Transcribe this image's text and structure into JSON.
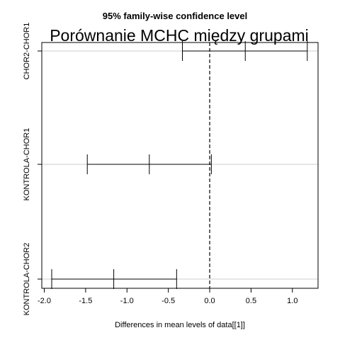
{
  "chart_data": {
    "type": "interval",
    "title": "95% family-wise confidence level",
    "subtitle": "Porównanie MCHC między grupami",
    "xlabel": "Differences in mean levels of data[[1]]",
    "ylabel": "",
    "xlim": [
      -2.03,
      1.31
    ],
    "xticks": [
      -2.0,
      -1.5,
      -1.0,
      -0.5,
      0.0,
      0.5,
      1.0
    ],
    "xtick_labels": [
      "-2.0",
      "-1.5",
      "-1.0",
      "-0.5",
      "0.0",
      "0.5",
      "1.0"
    ],
    "reference_line": 0.0,
    "grid": "horizontal",
    "comparisons": [
      {
        "label": "CHOR2-CHOR1",
        "estimate": 0.43,
        "lower": -0.33,
        "upper": 1.18
      },
      {
        "label": "KONTROLA-CHOR1",
        "estimate": -0.73,
        "lower": -1.48,
        "upper": 0.02
      },
      {
        "label": "KONTROLA-CHOR2",
        "estimate": -1.16,
        "lower": -1.91,
        "upper": -0.4
      }
    ]
  }
}
